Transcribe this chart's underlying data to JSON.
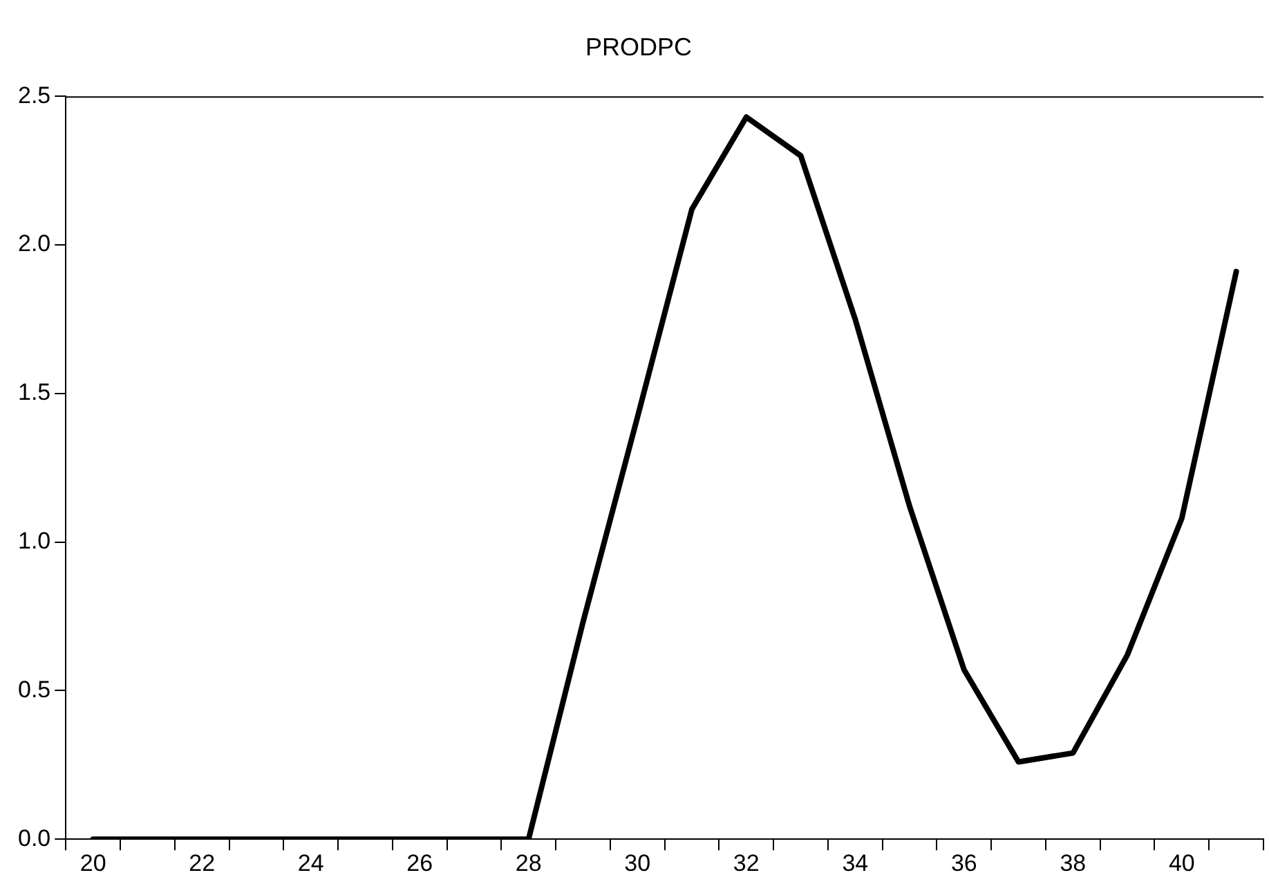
{
  "chart_data": {
    "type": "line",
    "title": "PRODPC",
    "categories": [
      "20",
      null,
      "22",
      null,
      "24",
      null,
      "26",
      null,
      "28",
      null,
      "30",
      null,
      "32",
      null,
      "34",
      null,
      "36",
      null,
      "38",
      null,
      "40",
      null
    ],
    "series": [
      {
        "color": "#000000",
        "values": [
          0,
          0,
          0,
          0,
          0,
          0,
          0,
          0,
          0,
          0.73,
          1.42,
          2.12,
          2.43,
          2.3,
          1.75,
          1.12,
          0.57,
          0.26,
          0.29,
          0.62,
          1.08,
          1.91
        ]
      }
    ],
    "ylim": [
      0,
      2.5
    ],
    "yticks": [
      {
        "value": 0,
        "label": "0.0"
      },
      {
        "value": 0.5,
        "label": "0.5"
      },
      {
        "value": 1,
        "label": "1.0"
      },
      {
        "value": 1.5,
        "label": "1.5"
      },
      {
        "value": 2,
        "label": "2.0"
      },
      {
        "value": 2.5,
        "label": "2.5"
      }
    ],
    "grid": false,
    "legend": false,
    "marker": "none",
    "line_style": "solid"
  }
}
